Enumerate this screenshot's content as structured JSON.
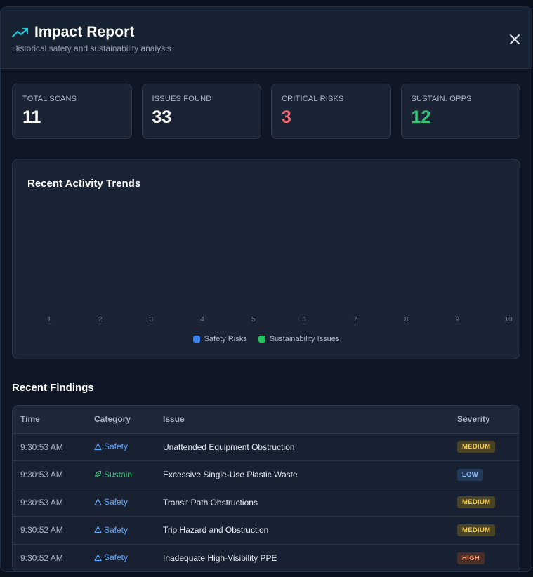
{
  "header": {
    "title": "Impact Report",
    "subtitle": "Historical safety and sustainability analysis"
  },
  "stats": [
    {
      "label": "TOTAL SCANS",
      "value": "11"
    },
    {
      "label": "ISSUES FOUND",
      "value": "33"
    },
    {
      "label": "CRITICAL RISKS",
      "value": "3"
    },
    {
      "label": "SUSTAIN. OPPS",
      "value": "12"
    }
  ],
  "chart": {
    "title": "Recent Activity Trends",
    "legend": {
      "safety": "Safety Risks",
      "sustain": "Sustainability Issues"
    }
  },
  "chart_data": {
    "type": "bar",
    "title": "Recent Activity Trends",
    "categories": [
      "1",
      "2",
      "3",
      "4",
      "5",
      "6",
      "7",
      "8",
      "9",
      "10"
    ],
    "series": [
      {
        "name": "Safety Risks",
        "values": [
          0,
          0,
          0,
          0,
          0,
          0,
          0,
          0,
          0,
          0
        ]
      },
      {
        "name": "Sustainability Issues",
        "values": [
          0,
          0,
          0,
          0,
          0,
          0,
          0,
          0,
          0,
          0
        ]
      }
    ],
    "grid": false,
    "legend_position": "bottom"
  },
  "colors": {
    "accent": "#22c3d6",
    "safety": "#3b82f6",
    "sustain": "#22c55e",
    "critical": "#f06a72",
    "positive": "#34c77a"
  },
  "findings": {
    "title": "Recent Findings",
    "columns": {
      "time": "Time",
      "category": "Category",
      "issue": "Issue",
      "severity": "Severity"
    },
    "rows": [
      {
        "time": "9:30:53 AM",
        "category": "Safety",
        "icon": "warning-triangle-icon",
        "issue": "Unattended Equipment Obstruction",
        "severity": "MEDIUM"
      },
      {
        "time": "9:30:53 AM",
        "category": "Sustain",
        "icon": "leaf-icon",
        "issue": "Excessive Single-Use Plastic Waste",
        "severity": "LOW"
      },
      {
        "time": "9:30:53 AM",
        "category": "Safety",
        "icon": "warning-triangle-icon",
        "issue": "Transit Path Obstructions",
        "severity": "MEDIUM"
      },
      {
        "time": "9:30:52 AM",
        "category": "Safety",
        "icon": "warning-triangle-icon",
        "issue": "Trip Hazard and Obstruction",
        "severity": "MEDIUM"
      },
      {
        "time": "9:30:52 AM",
        "category": "Safety",
        "icon": "warning-triangle-icon",
        "issue": "Inadequate High-Visibility PPE",
        "severity": "HIGH"
      }
    ]
  }
}
